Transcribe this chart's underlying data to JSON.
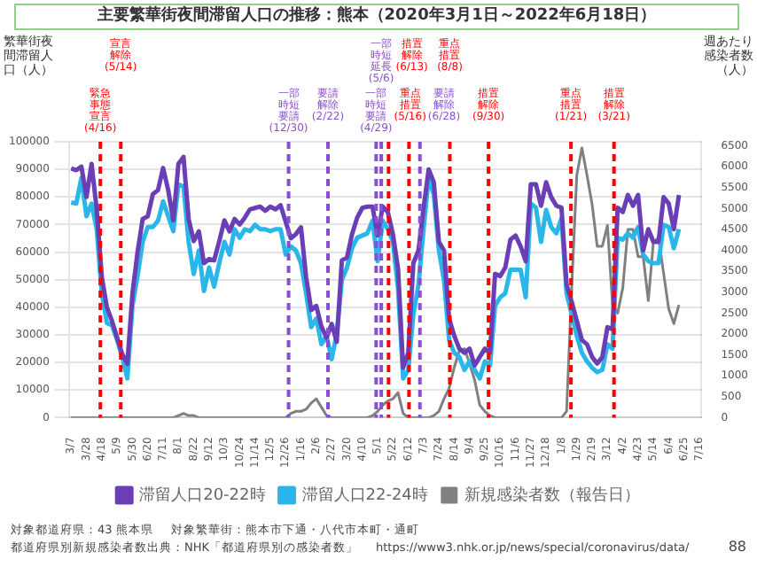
{
  "chart_data": {
    "type": "line",
    "title": "主要繁華街夜間滞留人口の推移：熊本（2020年3月1日～2022年6月18日）",
    "ylabel": "繁華街夜間滞留人口（人）",
    "y2label": "週あたり感染者数（人）",
    "x": [
      "2020-03-07",
      "2020-03-14",
      "2020-03-21",
      "2020-03-28",
      "2020-04-04",
      "2020-04-11",
      "2020-04-18",
      "2020-04-25",
      "2020-05-02",
      "2020-05-09",
      "2020-05-16",
      "2020-05-23",
      "2020-05-30",
      "2020-06-06",
      "2020-06-13",
      "2020-06-20",
      "2020-06-27",
      "2020-07-04",
      "2020-07-11",
      "2020-07-18",
      "2020-07-25",
      "2020-08-01",
      "2020-08-08",
      "2020-08-15",
      "2020-08-22",
      "2020-08-29",
      "2020-09-05",
      "2020-09-12",
      "2020-09-19",
      "2020-09-26",
      "2020-10-03",
      "2020-10-10",
      "2020-10-17",
      "2020-10-24",
      "2020-10-31",
      "2020-11-07",
      "2020-11-14",
      "2020-11-21",
      "2020-11-28",
      "2020-12-05",
      "2020-12-12",
      "2020-12-19",
      "2020-12-26",
      "2021-01-02",
      "2021-01-09",
      "2021-01-16",
      "2021-01-23",
      "2021-01-30",
      "2021-02-06",
      "2021-02-13",
      "2021-02-20",
      "2021-02-27",
      "2021-03-06",
      "2021-03-13",
      "2021-03-20",
      "2021-03-27",
      "2021-04-03",
      "2021-04-10",
      "2021-04-17",
      "2021-04-24",
      "2021-05-01",
      "2021-05-08",
      "2021-05-15",
      "2021-05-22",
      "2021-05-29",
      "2021-06-05",
      "2021-06-12",
      "2021-06-19",
      "2021-06-26",
      "2021-07-03",
      "2021-07-10",
      "2021-07-17",
      "2021-07-24",
      "2021-07-31",
      "2021-08-07",
      "2021-08-14",
      "2021-08-21",
      "2021-08-28",
      "2021-09-04",
      "2021-09-11",
      "2021-09-18",
      "2021-09-25",
      "2021-10-02",
      "2021-10-09",
      "2021-10-16",
      "2021-10-23",
      "2021-10-30",
      "2021-11-06",
      "2021-11-13",
      "2021-11-20",
      "2021-11-27",
      "2021-12-04",
      "2021-12-11",
      "2021-12-18",
      "2021-12-25",
      "2022-01-01",
      "2022-01-08",
      "2022-01-15",
      "2022-01-22",
      "2022-01-29",
      "2022-02-05",
      "2022-02-12",
      "2022-02-19",
      "2022-02-26",
      "2022-03-05",
      "2022-03-12",
      "2022-03-19",
      "2022-03-26",
      "2022-04-02",
      "2022-04-09",
      "2022-04-16",
      "2022-04-23",
      "2022-04-30",
      "2022-05-07",
      "2022-05-14",
      "2022-05-21",
      "2022-05-28",
      "2022-06-04",
      "2022-06-11",
      "2022-06-18"
    ],
    "series": [
      {
        "name": "滞留人口20-22時",
        "color": "#6a3fb5",
        "values": [
          90300,
          89700,
          91000,
          80000,
          92000,
          75500,
          51000,
          40000,
          35000,
          29000,
          23000,
          19500,
          45000,
          60000,
          72000,
          73000,
          81000,
          82500,
          90500,
          82500,
          71500,
          92000,
          94500,
          72000,
          64000,
          67500,
          56000,
          57500,
          57000,
          64000,
          71500,
          67500,
          72000,
          70000,
          72500,
          75500,
          76000,
          76500,
          75000,
          76500,
          75500,
          77000,
          71000,
          65000,
          66500,
          69000,
          51000,
          39000,
          40500,
          33000,
          29000,
          34000,
          27500,
          57000,
          58000,
          66500,
          72500,
          76000,
          76500,
          76500,
          66000,
          76500,
          74500,
          66500,
          54000,
          18100,
          23500,
          56000,
          60600,
          76000,
          90000,
          85300,
          63700,
          60600,
          35900,
          29700,
          25000,
          23500,
          25000,
          18900,
          22000,
          25000,
          23500,
          52100,
          51300,
          54400,
          64500,
          66000,
          62100,
          56700,
          84600,
          84600,
          76800,
          85300,
          79900,
          76800,
          76100,
          48200,
          42000,
          35100,
          28100,
          26600,
          22000,
          19600,
          22000,
          32800,
          32000,
          76100,
          74500,
          80700,
          76800,
          80700,
          60600,
          68300,
          63700,
          63700,
          79900,
          77600,
          68300,
          80700
        ]
      },
      {
        "name": "滞留人口22-24時",
        "color": "#29b6e8",
        "values": [
          78000,
          77600,
          86900,
          73000,
          77600,
          68300,
          45100,
          34300,
          33500,
          28100,
          22000,
          14200,
          40500,
          51300,
          63700,
          69100,
          69100,
          71400,
          78400,
          73000,
          67600,
          84600,
          83800,
          63700,
          52100,
          60600,
          45900,
          54400,
          47500,
          56000,
          63700,
          59100,
          68300,
          65200,
          68300,
          67600,
          69900,
          68300,
          68300,
          67600,
          68300,
          68300,
          59100,
          62100,
          60600,
          56000,
          45100,
          32800,
          35900,
          26600,
          29700,
          21200,
          30500,
          49800,
          54400,
          61400,
          65200,
          66000,
          66800,
          71400,
          56700,
          71400,
          68300,
          63700,
          46700,
          14200,
          17300,
          37400,
          48200,
          68300,
          86900,
          80700,
          60600,
          49800,
          28100,
          23500,
          22000,
          17300,
          20400,
          17300,
          14200,
          20400,
          18900,
          40500,
          43600,
          45100,
          53600,
          53600,
          53600,
          43600,
          77600,
          76100,
          63700,
          75300,
          69100,
          66800,
          72200,
          45100,
          37400,
          29700,
          23500,
          20400,
          18100,
          16500,
          17300,
          26600,
          25000,
          65200,
          64500,
          66800,
          65200,
          69100,
          59100,
          56700,
          56000,
          56000,
          69900,
          69100,
          61400,
          68300
        ]
      },
      {
        "name": "新規感染者数（報告日）",
        "color": "#808080",
        "axis": "y2",
        "values": [
          0,
          0,
          0,
          0,
          0,
          0,
          0,
          0,
          0,
          0,
          0,
          0,
          0,
          0,
          0,
          0,
          0,
          0,
          0,
          0,
          0,
          50,
          100,
          50,
          50,
          0,
          0,
          0,
          0,
          0,
          0,
          0,
          0,
          0,
          0,
          0,
          0,
          0,
          0,
          0,
          0,
          0,
          0,
          100,
          150,
          150,
          200,
          350,
          450,
          250,
          50,
          0,
          0,
          0,
          0,
          0,
          0,
          0,
          0,
          50,
          150,
          300,
          400,
          450,
          600,
          100,
          0,
          0,
          0,
          0,
          0,
          50,
          150,
          450,
          700,
          1200,
          1600,
          1650,
          1300,
          900,
          300,
          150,
          50,
          0,
          0,
          0,
          0,
          0,
          0,
          0,
          0,
          0,
          0,
          0,
          0,
          0,
          0,
          150,
          3100,
          5800,
          6450,
          5800,
          5100,
          4100,
          4100,
          4600,
          2700,
          2500,
          3100,
          4500,
          4500,
          3850,
          3850,
          2800,
          4200,
          4300,
          3450,
          2600,
          2250,
          2700
        ]
      }
    ],
    "xlim": [
      "2020-03-04",
      "2022-07-19"
    ],
    "xticks": [
      {
        "value": "2020-03-07",
        "label": "3/7"
      },
      {
        "value": "2020-03-28",
        "label": "3/28"
      },
      {
        "value": "2020-04-18",
        "label": "4/18"
      },
      {
        "value": "2020-05-09",
        "label": "5/9"
      },
      {
        "value": "2020-05-30",
        "label": "5/30"
      },
      {
        "value": "2020-06-20",
        "label": "6/20"
      },
      {
        "value": "2020-07-11",
        "label": "7/11"
      },
      {
        "value": "2020-08-01",
        "label": "8/1"
      },
      {
        "value": "2020-08-22",
        "label": "8/22"
      },
      {
        "value": "2020-09-12",
        "label": "9/12"
      },
      {
        "value": "2020-10-03",
        "label": "10/3"
      },
      {
        "value": "2020-10-24",
        "label": "10/24"
      },
      {
        "value": "2020-11-14",
        "label": "11/14"
      },
      {
        "value": "2020-12-05",
        "label": "12/5"
      },
      {
        "value": "2020-12-26",
        "label": "12/26"
      },
      {
        "value": "2021-01-16",
        "label": "1/16"
      },
      {
        "value": "2021-02-06",
        "label": "2/6"
      },
      {
        "value": "2021-02-27",
        "label": "2/27"
      },
      {
        "value": "2021-03-20",
        "label": "3/20"
      },
      {
        "value": "2021-04-10",
        "label": "4/10"
      },
      {
        "value": "2021-05-01",
        "label": "5/1"
      },
      {
        "value": "2021-05-22",
        "label": "5/22"
      },
      {
        "value": "2021-06-12",
        "label": "6/12"
      },
      {
        "value": "2021-07-03",
        "label": "7/3"
      },
      {
        "value": "2021-07-24",
        "label": "7/24"
      },
      {
        "value": "2021-08-14",
        "label": "8/14"
      },
      {
        "value": "2021-09-04",
        "label": "9/4"
      },
      {
        "value": "2021-09-25",
        "label": "9/25"
      },
      {
        "value": "2021-10-16",
        "label": "10/16"
      },
      {
        "value": "2021-11-06",
        "label": "11/6"
      },
      {
        "value": "2021-11-27",
        "label": "11/27"
      },
      {
        "value": "2021-12-18",
        "label": "12/18"
      },
      {
        "value": "2022-01-08",
        "label": "1/8"
      },
      {
        "value": "2022-01-29",
        "label": "1/29"
      },
      {
        "value": "2022-02-19",
        "label": "2/19"
      },
      {
        "value": "2022-03-12",
        "label": "3/12"
      },
      {
        "value": "2022-04-02",
        "label": "4/2"
      },
      {
        "value": "2022-04-23",
        "label": "4/23"
      },
      {
        "value": "2022-05-14",
        "label": "5/14"
      },
      {
        "value": "2022-06-04",
        "label": "6/4"
      },
      {
        "value": "2022-06-25",
        "label": "6/25"
      },
      {
        "value": "2022-07-16",
        "label": "7/16"
      }
    ],
    "ylim": [
      0,
      100000
    ],
    "yticks": [
      0,
      10000,
      20000,
      30000,
      40000,
      50000,
      60000,
      70000,
      80000,
      90000,
      100000
    ],
    "y2lim": [
      0,
      6600
    ],
    "y2ticks": [
      0,
      500,
      1000,
      1500,
      2000,
      2500,
      3000,
      3500,
      4000,
      4500,
      5000,
      5500,
      6000,
      6500
    ],
    "ref_lines": [
      {
        "axis": "x",
        "value": "2020-04-16",
        "label": "緊急事態宣言(4/16)",
        "color": "#ff0000",
        "line_style": "dashed"
      },
      {
        "axis": "x",
        "value": "2020-05-14",
        "label": "宣言解除(5/14)",
        "color": "#ff0000",
        "line_style": "dashed"
      },
      {
        "axis": "x",
        "value": "2020-12-30",
        "label": "一部時短要請(12/30)",
        "color": "#8a4fd0",
        "line_style": "dashed"
      },
      {
        "axis": "x",
        "value": "2021-02-22",
        "label": "要請解除(2/22)",
        "color": "#8a4fd0",
        "line_style": "dashed"
      },
      {
        "axis": "x",
        "value": "2021-04-29",
        "label": "一部時短要請(4/29)",
        "color": "#8a4fd0",
        "line_style": "dashed"
      },
      {
        "axis": "x",
        "value": "2021-05-06",
        "label": "一部時短延長(5/6)",
        "color": "#8a4fd0",
        "line_style": "dashed"
      },
      {
        "axis": "x",
        "value": "2021-05-16",
        "label": "重点措置(5/16)",
        "color": "#ff0000",
        "line_style": "dashed"
      },
      {
        "axis": "x",
        "value": "2021-06-13",
        "label": "措置解除(6/13)",
        "color": "#ff0000",
        "line_style": "dashed"
      },
      {
        "axis": "x",
        "value": "2021-06-28",
        "label": "要請解除(6/28)",
        "color": "#8a4fd0",
        "line_style": "dashed"
      },
      {
        "axis": "x",
        "value": "2021-08-08",
        "label": "重点措置(8/8)",
        "color": "#ff0000",
        "line_style": "dashed"
      },
      {
        "axis": "x",
        "value": "2021-09-30",
        "label": "措置解除(9/30)",
        "color": "#ff0000",
        "line_style": "dashed"
      },
      {
        "axis": "x",
        "value": "2022-01-21",
        "label": "重点措置(1/21)",
        "color": "#ff0000",
        "line_style": "dashed"
      },
      {
        "axis": "x",
        "value": "2022-03-21",
        "label": "措置解除(3/21)",
        "color": "#ff0000",
        "line_style": "dashed"
      }
    ],
    "annotations": [
      "対象都道府県：43 熊本県",
      "対象繁華街：熊本市下通・八代市本町・通町",
      "都道府県別新規感染者数出典：NHK「都道府県別の感染者数」",
      "https://www3.nhk.or.jp/news/special/coronavirus/data/",
      "88"
    ],
    "grid": "y",
    "legend": "bottom",
    "marker": "none",
    "line_style": "solid"
  }
}
